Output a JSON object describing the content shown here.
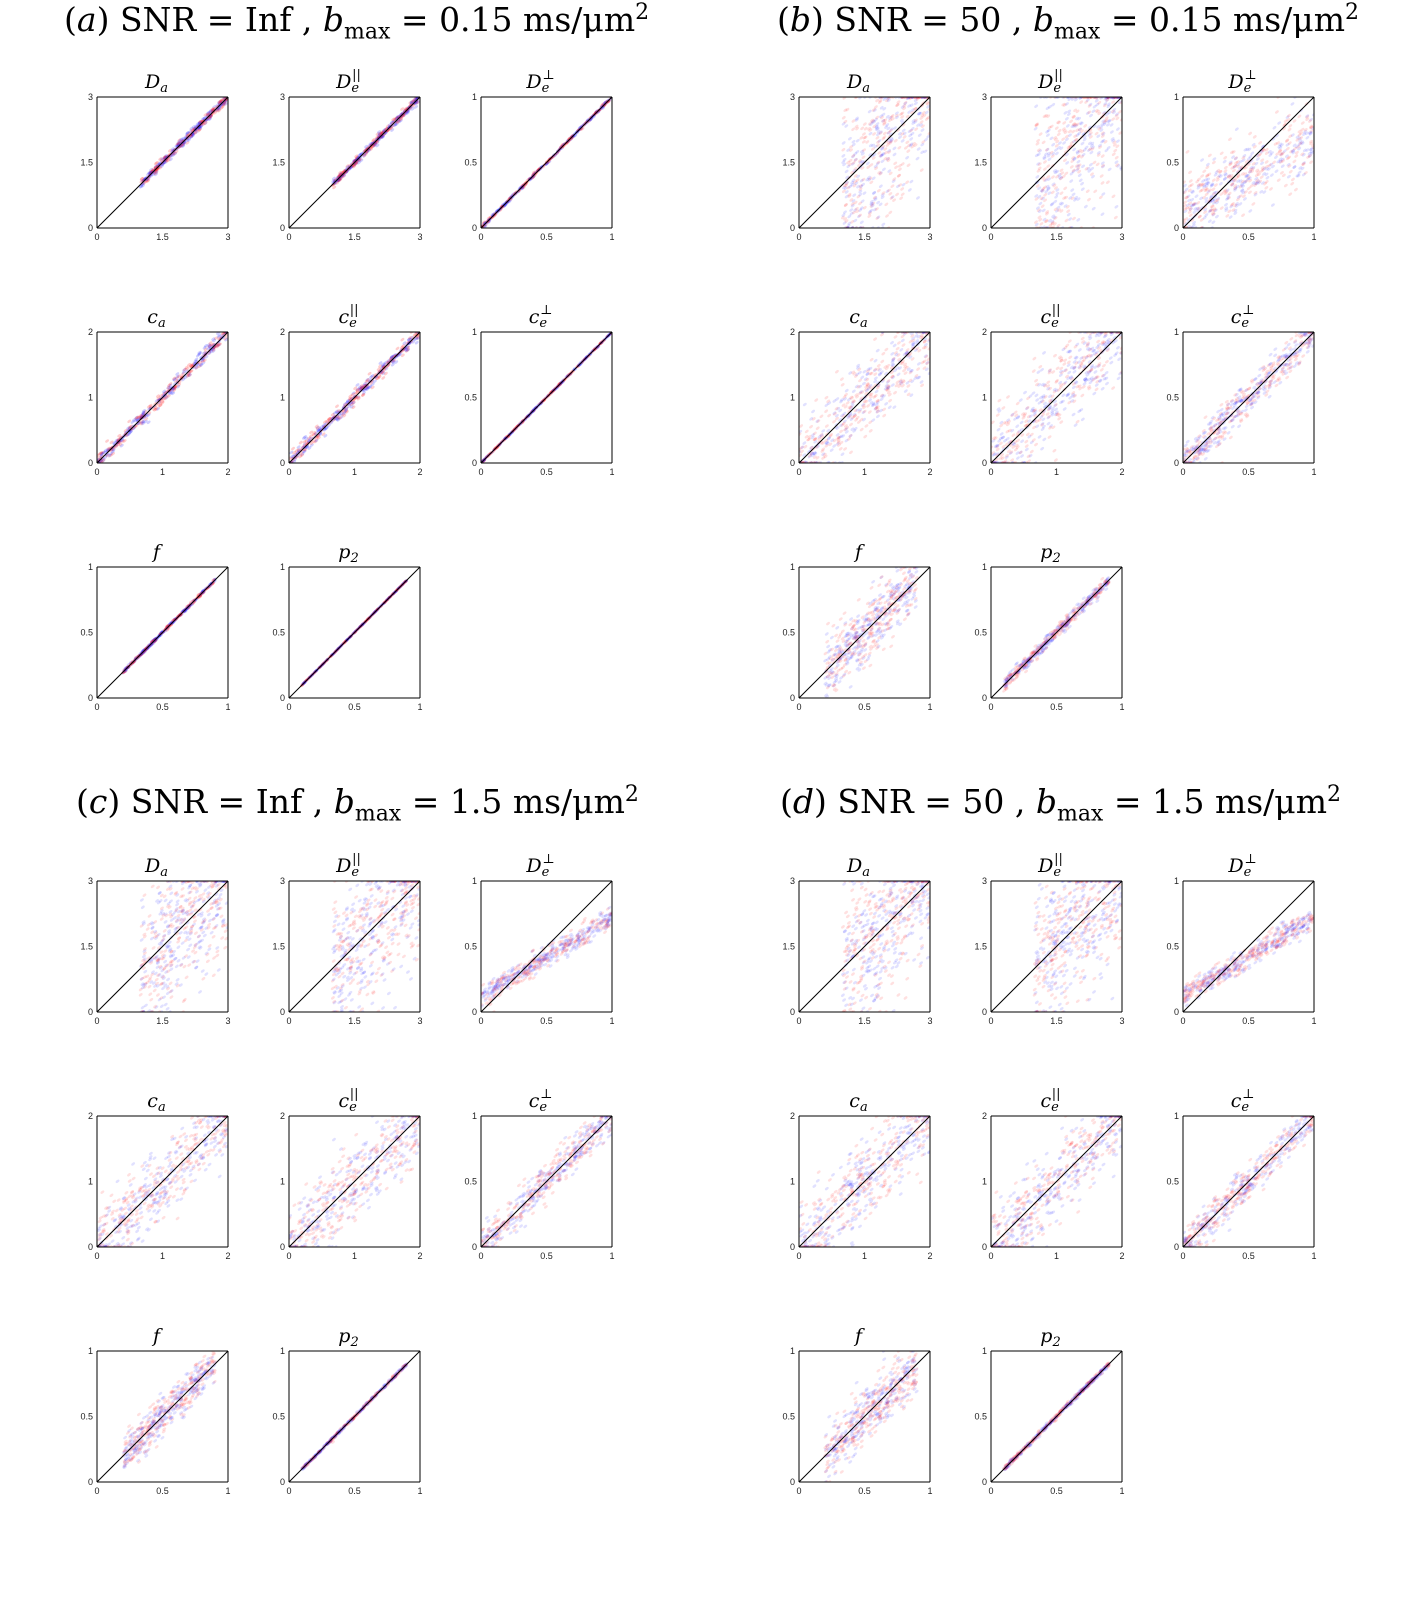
{
  "figure": {
    "panels": [
      {
        "label": "a",
        "snr": "Inf",
        "b_max": "0.15",
        "title_parts": {
          "open": "(",
          "label": "a",
          "close": ")",
          "snr_text": "SNR = ",
          "snr": "Inf",
          "b_text": " ,  ",
          "b_sym": "b",
          "b_sub": "max",
          "eq": " = ",
          "b_val": "0.15",
          "units": " ms/μm",
          "sup": "2"
        }
      },
      {
        "label": "b",
        "snr": "50",
        "b_max": "0.15",
        "title_parts": {
          "open": "(",
          "label": "b",
          "close": ")",
          "snr_text": "SNR = ",
          "snr": "50",
          "b_text": " ,  ",
          "b_sym": "b",
          "b_sub": "max",
          "eq": " = ",
          "b_val": "0.15",
          "units": " ms/μm",
          "sup": "2"
        }
      },
      {
        "label": "c",
        "snr": "Inf",
        "b_max": "1.5",
        "title_parts": {
          "open": "(",
          "label": "c",
          "close": ")",
          "snr_text": "SNR = ",
          "snr": "Inf",
          "b_text": " ,  ",
          "b_sym": "b",
          "b_sub": "max",
          "eq": " = ",
          "b_val": "1.5",
          "units": " ms/μm",
          "sup": "2"
        }
      },
      {
        "label": "d",
        "snr": "50",
        "b_max": "1.5",
        "title_parts": {
          "open": "(",
          "label": "d",
          "close": ")",
          "snr_text": "SNR = ",
          "snr": "50",
          "b_text": " ,  ",
          "b_sym": "b",
          "b_sub": "max",
          "eq": " = ",
          "b_val": "1.5",
          "units": " ms/μm",
          "sup": "2"
        }
      }
    ]
  },
  "chart_data": {
    "type": "scatter",
    "description_units": "estimated vs ground-truth parameter, colour = density of two sample groups (blue / red)",
    "colors": {
      "blue": "#2b2bff",
      "red": "#ff2020",
      "identity_line": "#000000"
    },
    "parameters": [
      {
        "key": "Da",
        "title": "D",
        "title_sub": "a",
        "title_sup": "",
        "range": [
          0,
          3
        ],
        "ticks": [
          "0",
          "1.5",
          "3"
        ],
        "truth_range": [
          1,
          3
        ]
      },
      {
        "key": "De_par",
        "title": "D",
        "title_sub": "e",
        "title_sup": "||",
        "range": [
          0,
          3
        ],
        "ticks": [
          "0",
          "1.5",
          "3"
        ],
        "truth_range": [
          1,
          3
        ]
      },
      {
        "key": "De_perp",
        "title": "D",
        "title_sub": "e",
        "title_sup": "⊥",
        "range": [
          0,
          1
        ],
        "ticks": [
          "0",
          "0.5",
          "1"
        ],
        "truth_range": [
          0,
          1
        ]
      },
      {
        "key": "ca",
        "title": "c",
        "title_sub": "a",
        "title_sup": "",
        "range": [
          0,
          2
        ],
        "ticks": [
          "0",
          "1",
          "2"
        ],
        "truth_range": [
          0,
          2
        ]
      },
      {
        "key": "ce_par",
        "title": "c",
        "title_sub": "e",
        "title_sup": "||",
        "range": [
          0,
          2
        ],
        "ticks": [
          "0",
          "1",
          "2"
        ],
        "truth_range": [
          0,
          2
        ]
      },
      {
        "key": "ce_perp",
        "title": "c",
        "title_sub": "e",
        "title_sup": "⊥",
        "range": [
          0,
          1
        ],
        "ticks": [
          "0",
          "0.5",
          "1"
        ],
        "truth_range": [
          0,
          1
        ]
      },
      {
        "key": "f",
        "title": "f",
        "title_sub": "",
        "title_sup": "",
        "range": [
          0,
          1
        ],
        "ticks": [
          "0",
          "0.5",
          "1"
        ],
        "truth_range": [
          0.2,
          0.9
        ]
      },
      {
        "key": "p2",
        "title": "p",
        "title_sub": "2",
        "title_sup": "",
        "range": [
          0,
          1
        ],
        "ticks": [
          "0",
          "0.5",
          "1"
        ],
        "truth_range": [
          0.1,
          0.9
        ]
      }
    ],
    "spread": {
      "a": {
        "Da": 0.05,
        "De_par": 0.05,
        "De_perp": 0.02,
        "ca": 0.08,
        "ce_par": 0.08,
        "ce_perp": 0.01,
        "f": 0.02,
        "p2": 0.005
      },
      "b": {
        "Da": 0.9,
        "De_par": 0.9,
        "De_perp": 0.4,
        "ca": 0.45,
        "ce_par": 0.5,
        "ce_perp": 0.2,
        "f": 0.35,
        "p2": 0.07
      },
      "c": {
        "Da": 0.8,
        "De_par": 0.8,
        "De_perp": 0.12,
        "ca": 0.45,
        "ce_par": 0.45,
        "ce_perp": 0.2,
        "f": 0.22,
        "p2": 0.02
      },
      "d": {
        "Da": 0.8,
        "De_par": 0.8,
        "De_perp": 0.12,
        "ca": 0.45,
        "ce_par": 0.45,
        "ce_perp": 0.2,
        "f": 0.3,
        "p2": 0.03
      }
    }
  }
}
